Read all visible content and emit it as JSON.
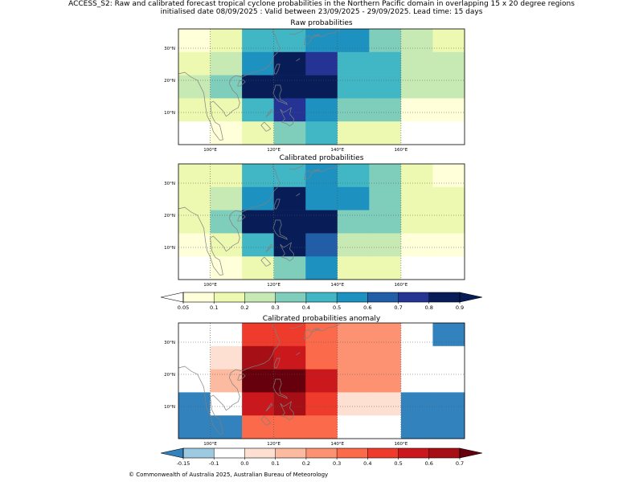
{
  "suptitle_line1": "ACCESS_S2: Raw and calibrated forecast tropical cyclone probabilities in the Northern Pacific domain in overlapping 15 x 20 degree regions",
  "suptitle_line2": "initialised date 08/09/2025 :  Valid between 23/09/2025 - 29/09/2025. Lead time: 15 days",
  "footer": "© Commonwealth of Australia 2025, Australian Bureau of Meteorology",
  "maps": {
    "lon_ticks": [
      100,
      120,
      140,
      160
    ],
    "lon_tick_labels": [
      "100°E",
      "120°E",
      "140°E",
      "160°E"
    ],
    "lat_ticks": [
      10,
      20,
      30
    ],
    "lat_tick_labels": [
      "10°N",
      "20°N",
      "30°N"
    ],
    "panels": [
      {
        "title": "Raw probabilities",
        "cmap": "prob",
        "rows_top_to_bottom": [
          [
            0.08,
            0.15,
            0.15,
            0.45,
            0.45,
            0.55,
            0.55,
            0.5,
            0.35,
            0.25,
            0.25,
            0.15
          ],
          [
            0.15,
            0.25,
            0.25,
            0.5,
            0.9,
            0.85,
            0.7,
            0.45,
            0.45,
            0.25,
            0.25,
            0.25
          ],
          [
            0.25,
            0.35,
            0.35,
            0.85,
            0.95,
            0.95,
            0.85,
            0.45,
            0.45,
            0.25,
            0.25,
            0.25
          ],
          [
            0.15,
            0.15,
            0.15,
            0.45,
            0.7,
            0.7,
            0.55,
            0.35,
            0.35,
            0.08,
            0.08,
            0.08
          ],
          [
            0.03,
            0.08,
            0.08,
            0.15,
            0.3,
            0.4,
            0.4,
            0.15,
            0.15,
            0.03,
            0.03,
            0.03
          ]
        ]
      },
      {
        "title": "Calibrated probabilities",
        "cmap": "prob",
        "rows_top_to_bottom": [
          [
            0.15,
            0.15,
            0.15,
            0.45,
            0.45,
            0.55,
            0.55,
            0.45,
            0.35,
            0.15,
            0.15,
            0.08
          ],
          [
            0.15,
            0.25,
            0.25,
            0.55,
            0.9,
            0.85,
            0.55,
            0.55,
            0.35,
            0.15,
            0.15,
            0.15
          ],
          [
            0.15,
            0.35,
            0.35,
            0.85,
            0.95,
            0.95,
            0.85,
            0.35,
            0.35,
            0.15,
            0.15,
            0.15
          ],
          [
            0.08,
            0.15,
            0.15,
            0.45,
            0.85,
            0.9,
            0.65,
            0.25,
            0.25,
            0.08,
            0.08,
            0.08
          ],
          [
            0.03,
            0.08,
            0.08,
            0.15,
            0.35,
            0.55,
            0.55,
            0.15,
            0.15,
            0.03,
            0.03,
            0.03
          ]
        ]
      },
      {
        "title": "Calibrated probabilities anomaly",
        "cmap": "anom",
        "rows_top_to_bottom": [
          [
            -0.05,
            -0.05,
            0.25,
            0.45,
            0.45,
            0.35,
            0.35,
            0.2,
            0.2,
            -0.05,
            -0.05,
            -0.2
          ],
          [
            -0.05,
            0.05,
            0.35,
            0.65,
            0.55,
            0.55,
            0.35,
            0.2,
            0.2,
            -0.05,
            -0.05,
            -0.05
          ],
          [
            -0.05,
            0.15,
            0.55,
            0.75,
            0.75,
            0.55,
            0.55,
            0.2,
            0.2,
            -0.05,
            -0.05,
            -0.05
          ],
          [
            -0.2,
            -0.05,
            0.25,
            0.55,
            0.65,
            0.45,
            0.45,
            0.05,
            0.05,
            -0.2,
            -0.2,
            -0.2
          ],
          [
            -0.3,
            -0.2,
            -0.05,
            0.35,
            0.35,
            0.35,
            0.35,
            -0.05,
            -0.05,
            -0.3,
            -0.3,
            -0.3
          ]
        ]
      }
    ]
  },
  "colorbars": [
    {
      "name": "prob",
      "ticks": [
        "0.05",
        "0.1",
        "0.2",
        "0.3",
        "0.4",
        "0.5",
        "0.6",
        "0.7",
        "0.8",
        "0.9"
      ],
      "colors": [
        "#ffffd9",
        "#edf8b1",
        "#c7e9b4",
        "#7fcdbb",
        "#41b6c4",
        "#1d91c0",
        "#225ea8",
        "#253494",
        "#081d58"
      ],
      "under": "#ffffff",
      "over": "#081d58"
    },
    {
      "name": "anom",
      "ticks": [
        "-0.15",
        "-0.1",
        "0.0",
        "0.1",
        "0.2",
        "0.3",
        "0.4",
        "0.5",
        "0.6",
        "0.7"
      ],
      "colors": [
        "#9ecae1",
        "#ffffff",
        "#fee0d2",
        "#fcbba1",
        "#fc9272",
        "#fb6a4a",
        "#ef3b2c",
        "#cb181d",
        "#a50f15"
      ],
      "under": "#3182bd",
      "over": "#67000d"
    }
  ]
}
